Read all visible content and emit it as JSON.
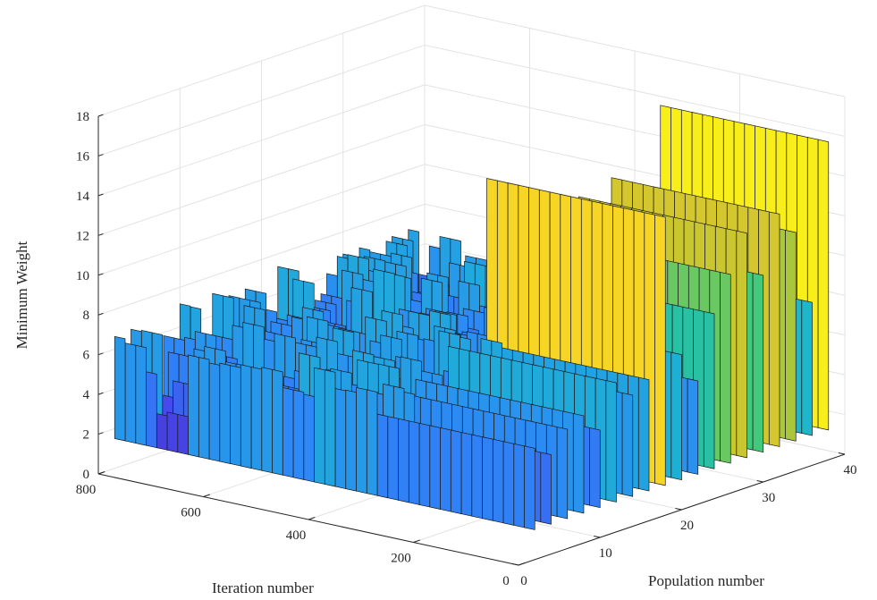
{
  "chart_data": {
    "type": "surface3d",
    "title": "",
    "xlabel": "Population number",
    "ylabel": "Iteration number",
    "zlabel": "Minimum Weight",
    "xlim": [
      0,
      40
    ],
    "ylim": [
      0,
      800
    ],
    "zlim": [
      0,
      18
    ],
    "xticks": [
      "0",
      "10",
      "20",
      "30",
      "40"
    ],
    "yticks": [
      "0",
      "200",
      "400",
      "600",
      "800"
    ],
    "zticks": [
      "0",
      "2",
      "4",
      "6",
      "8",
      "10",
      "12",
      "14",
      "16",
      "18"
    ],
    "grid": true,
    "colormap": "parula",
    "colormap_stops": [
      "#3e26a8",
      "#4746eb",
      "#2e87f7",
      "#1cb3d3",
      "#2ec989",
      "#b8c631",
      "#f5c52b",
      "#f9fb15"
    ],
    "series": [
      {
        "population": 2,
        "plateau_weight": 5.6,
        "plateau_start_iteration": 280
      },
      {
        "population": 4,
        "plateau_weight": 5.0,
        "plateau_start_iteration": 270
      },
      {
        "population": 6,
        "plateau_weight": 6.0,
        "plateau_start_iteration": 300
      },
      {
        "population": 8,
        "plateau_weight": 6.4,
        "plateau_start_iteration": 300
      },
      {
        "population": 10,
        "plateau_weight": 5.4,
        "plateau_start_iteration": 280
      },
      {
        "population": 12,
        "plateau_weight": 7.5,
        "plateau_start_iteration": 300
      },
      {
        "population": 14,
        "plateau_weight": 6.6,
        "plateau_start_iteration": 300
      },
      {
        "population": 16,
        "plateau_weight": 7.1,
        "plateau_start_iteration": 290
      },
      {
        "population": 18,
        "plateau_weight": 15.0,
        "plateau_start_iteration": 330
      },
      {
        "population": 20,
        "plateau_weight": 7.8,
        "plateau_start_iteration": 300
      },
      {
        "population": 22,
        "plateau_weight": 6.2,
        "plateau_start_iteration": 290
      },
      {
        "population": 24,
        "plateau_weight": 9.3,
        "plateau_start_iteration": 300
      },
      {
        "population": 26,
        "plateau_weight": 11.0,
        "plateau_start_iteration": 300
      },
      {
        "population": 28,
        "plateau_weight": 12.8,
        "plateau_start_iteration": 310
      },
      {
        "population": 30,
        "plateau_weight": 10.4,
        "plateau_start_iteration": 300
      },
      {
        "population": 32,
        "plateau_weight": 13.2,
        "plateau_start_iteration": 300
      },
      {
        "population": 34,
        "plateau_weight": 12.0,
        "plateau_start_iteration": 300
      },
      {
        "population": 36,
        "plateau_weight": 8.2,
        "plateau_start_iteration": 300
      },
      {
        "population": 38,
        "plateau_weight": 16.0,
        "plateau_start_iteration": 300
      }
    ]
  }
}
